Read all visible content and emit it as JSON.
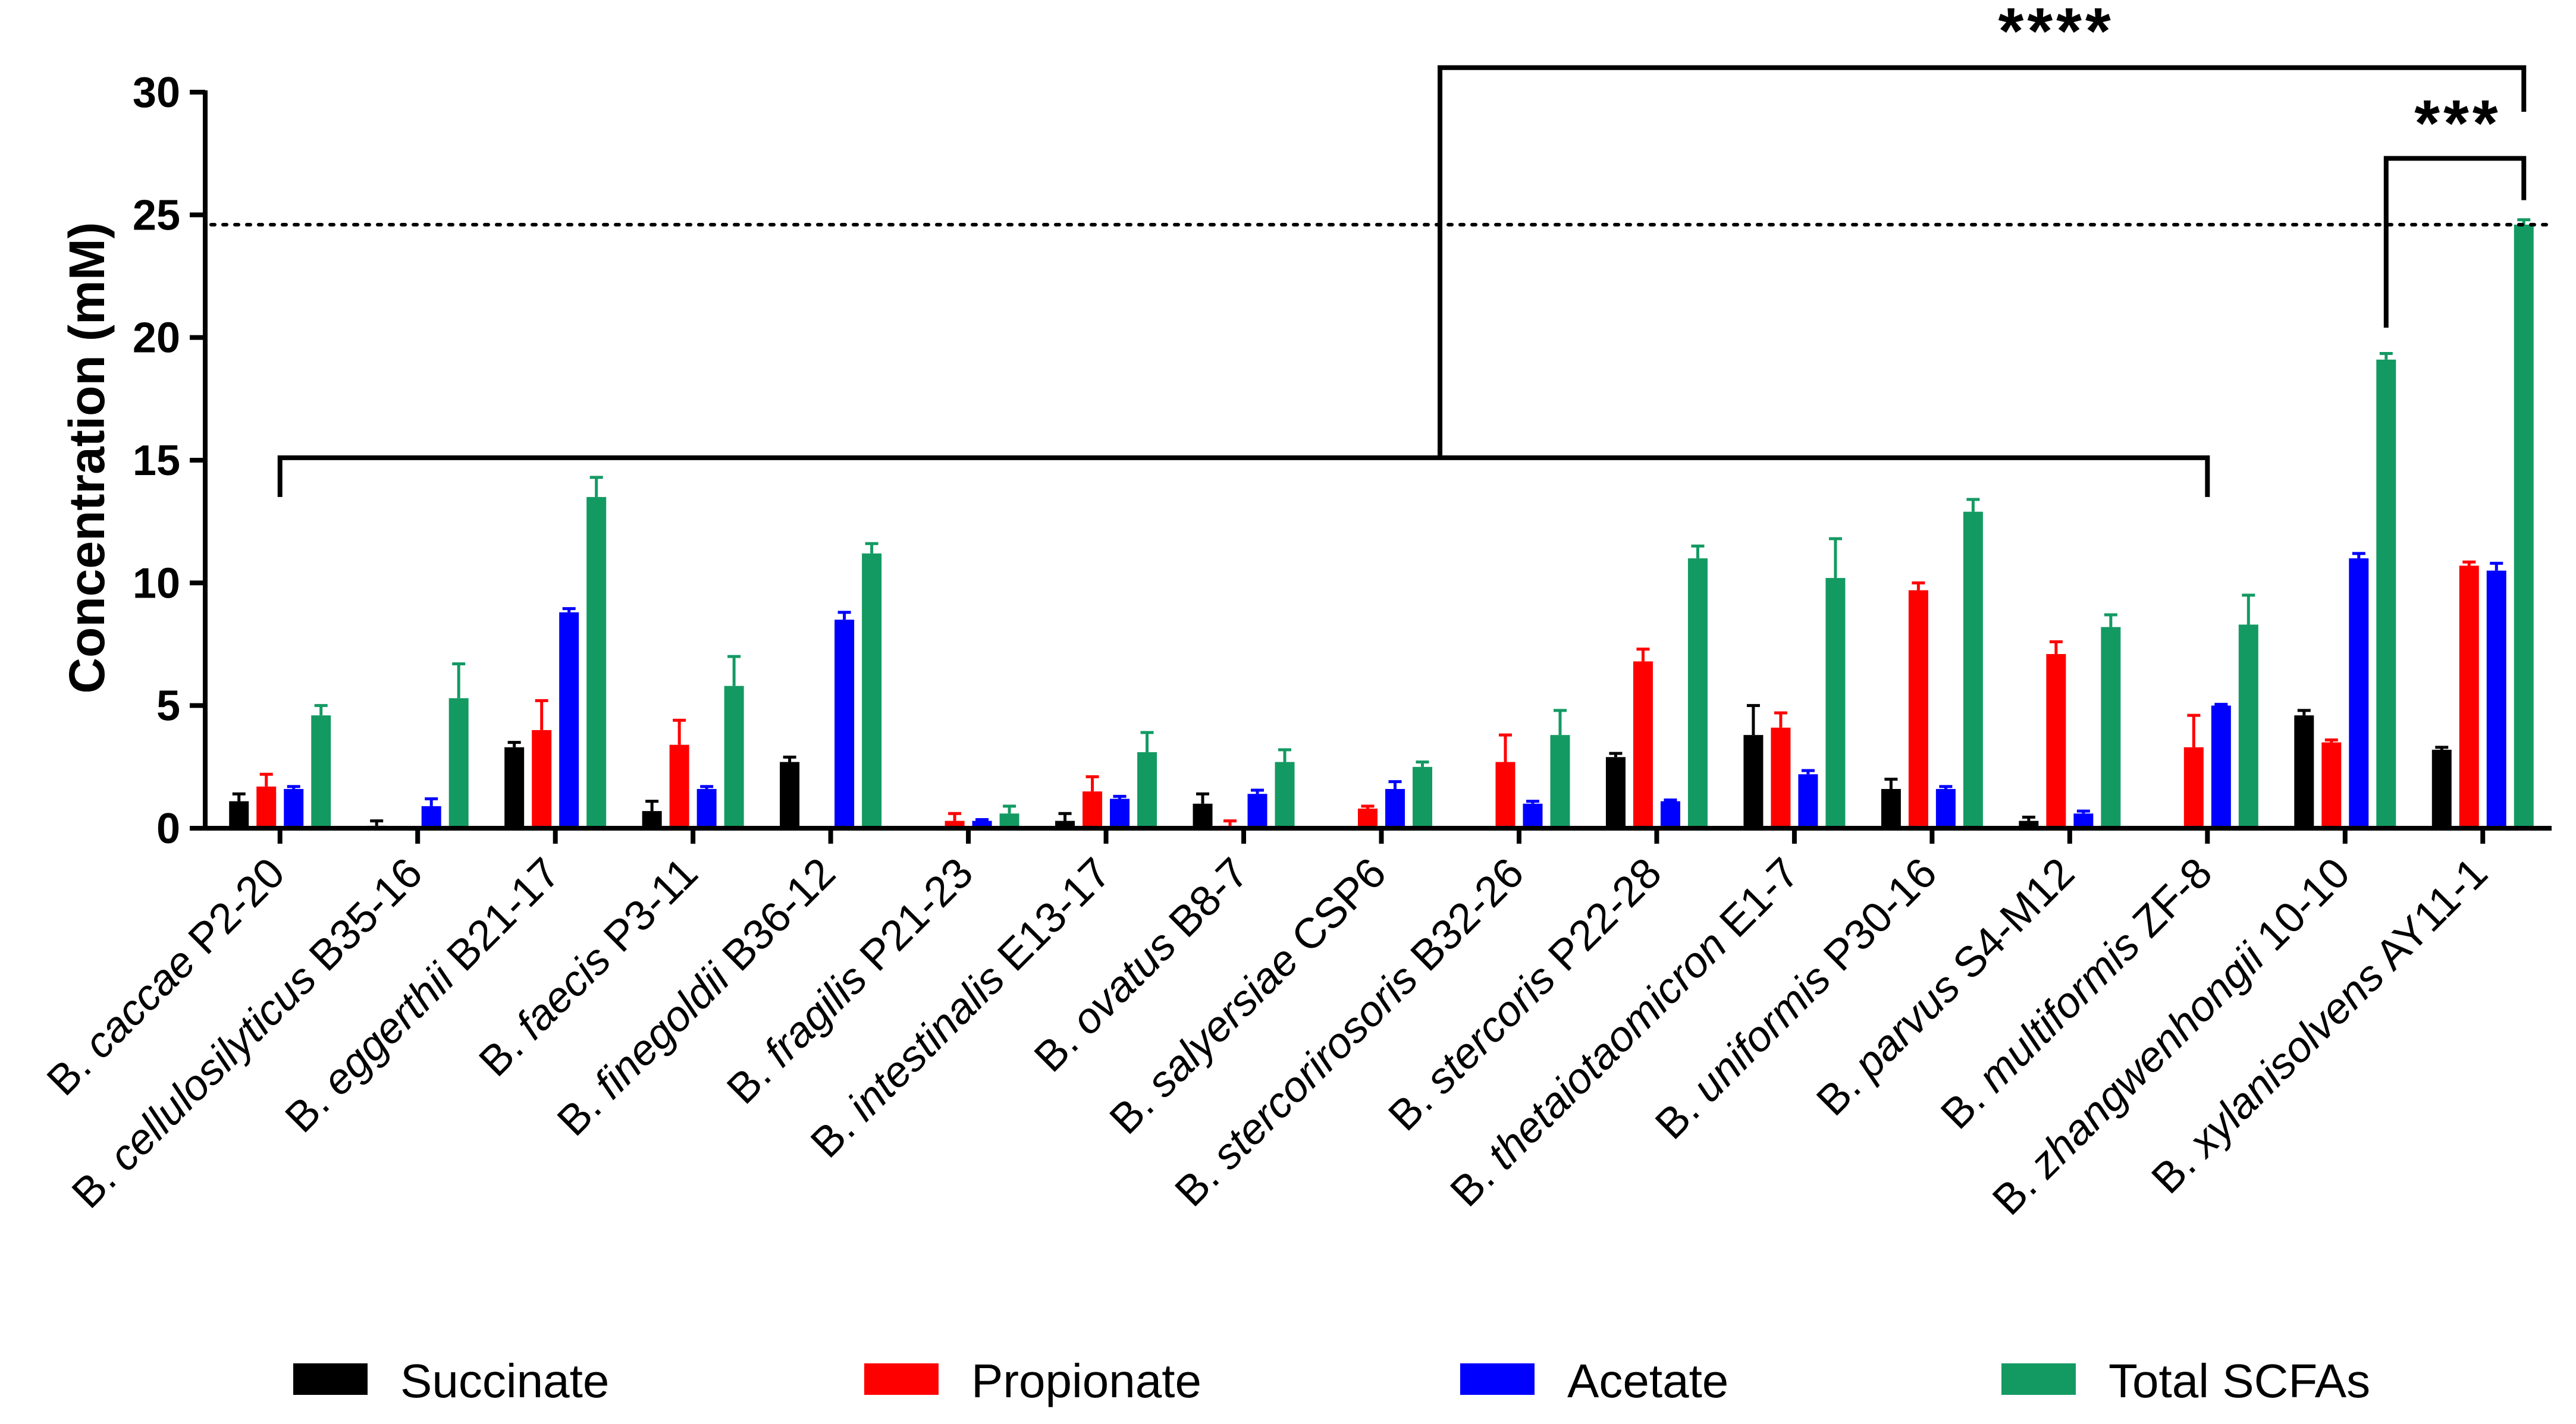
{
  "chart_data": {
    "type": "bar",
    "ylabel": "Concentration (mM)",
    "xlabel": "",
    "ylim": [
      0,
      30
    ],
    "yticks": [
      0,
      5,
      10,
      15,
      20,
      25,
      30
    ],
    "grid": false,
    "legend_position": "bottom",
    "categories": [
      {
        "genus": "B. ",
        "species": "caccae",
        "strain": " P2-20"
      },
      {
        "genus": "B. ",
        "species": "cellulosilyticus",
        "strain": " B35-16"
      },
      {
        "genus": "B. ",
        "species": "eggerthii",
        "strain": " B21-17"
      },
      {
        "genus": "B. ",
        "species": "faecis",
        "strain": " P3-11"
      },
      {
        "genus": "B. ",
        "species": "finegoldii",
        "strain": " B36-12"
      },
      {
        "genus": "B. ",
        "species": "fragilis",
        "strain": " P21-23"
      },
      {
        "genus": "B. ",
        "species": "intestinalis",
        "strain": " E13-17"
      },
      {
        "genus": "B. ",
        "species": "ovatus",
        "strain": " B8-7"
      },
      {
        "genus": "B. ",
        "species": "salyersiae",
        "strain": " CSP6"
      },
      {
        "genus": "B. ",
        "species": "stercorirosoris",
        "strain": " B32-26"
      },
      {
        "genus": "B. ",
        "species": "stercoris",
        "strain": " P22-28"
      },
      {
        "genus": "B. ",
        "species": "thetaiotaomicron",
        "strain": " E1-7"
      },
      {
        "genus": "B. ",
        "species": "uniformis",
        "strain": " P30-16"
      },
      {
        "genus": "B. ",
        "species": "parvus",
        "strain": " S4-M12"
      },
      {
        "genus": "B. ",
        "species": "multiformis",
        "strain": " ZF-8"
      },
      {
        "genus": "B. ",
        "species": "zhangwenhongii",
        "strain": " 10-10"
      },
      {
        "genus": "B. ",
        "species": "xylanisolvens",
        "strain": " AY11-1"
      }
    ],
    "series": [
      {
        "name": "Succinate",
        "color": "#000000",
        "values": [
          1.1,
          0.1,
          3.3,
          0.7,
          2.7,
          0,
          0.3,
          1.0,
          0,
          0,
          2.9,
          3.8,
          1.6,
          0.3,
          0,
          4.6,
          3.2
        ],
        "errors": [
          0.3,
          0.2,
          0.2,
          0.4,
          0.2,
          0,
          0.3,
          0.4,
          0,
          0,
          0.15,
          1.2,
          0.4,
          0.15,
          0,
          0.2,
          0.1
        ]
      },
      {
        "name": "Propionate",
        "color": "#ff0000",
        "values": [
          1.7,
          0,
          4.0,
          3.4,
          0,
          0.3,
          1.5,
          0.1,
          0.8,
          2.7,
          6.8,
          4.1,
          9.7,
          7.1,
          3.3,
          3.5,
          10.7
        ],
        "errors": [
          0.5,
          0,
          1.2,
          1.0,
          0,
          0.3,
          0.6,
          0.2,
          0.1,
          1.1,
          0.5,
          0.6,
          0.3,
          0.5,
          1.3,
          0.1,
          0.15
        ]
      },
      {
        "name": "Acetate",
        "color": "#0000ff",
        "values": [
          1.6,
          0.9,
          8.8,
          1.6,
          8.5,
          0.3,
          1.2,
          1.4,
          1.6,
          1.0,
          1.1,
          2.2,
          1.6,
          0.6,
          5.0,
          11.0,
          10.5
        ],
        "errors": [
          0.1,
          0.3,
          0.15,
          0.1,
          0.3,
          0.05,
          0.1,
          0.15,
          0.3,
          0.1,
          0.05,
          0.15,
          0.1,
          0.1,
          0.05,
          0.2,
          0.3
        ]
      },
      {
        "name": "Total SCFAs",
        "color": "#139a62",
        "values": [
          4.6,
          5.3,
          13.5,
          5.8,
          11.2,
          0.6,
          3.1,
          2.7,
          2.5,
          3.8,
          11.0,
          10.2,
          12.9,
          8.2,
          8.3,
          19.1,
          24.6
        ],
        "errors": [
          0.4,
          1.4,
          0.8,
          1.2,
          0.4,
          0.3,
          0.8,
          0.5,
          0.2,
          1.0,
          0.5,
          1.6,
          0.5,
          0.5,
          1.2,
          0.25,
          0.2
        ]
      }
    ],
    "reference_line": {
      "y": 24.6,
      "style": "dotted"
    },
    "annotations": [
      {
        "text": "****",
        "group_start": 0,
        "group_end": 14,
        "compare_to": 16
      },
      {
        "text": "***",
        "compare_from": 15,
        "compare_to": 16
      }
    ]
  }
}
